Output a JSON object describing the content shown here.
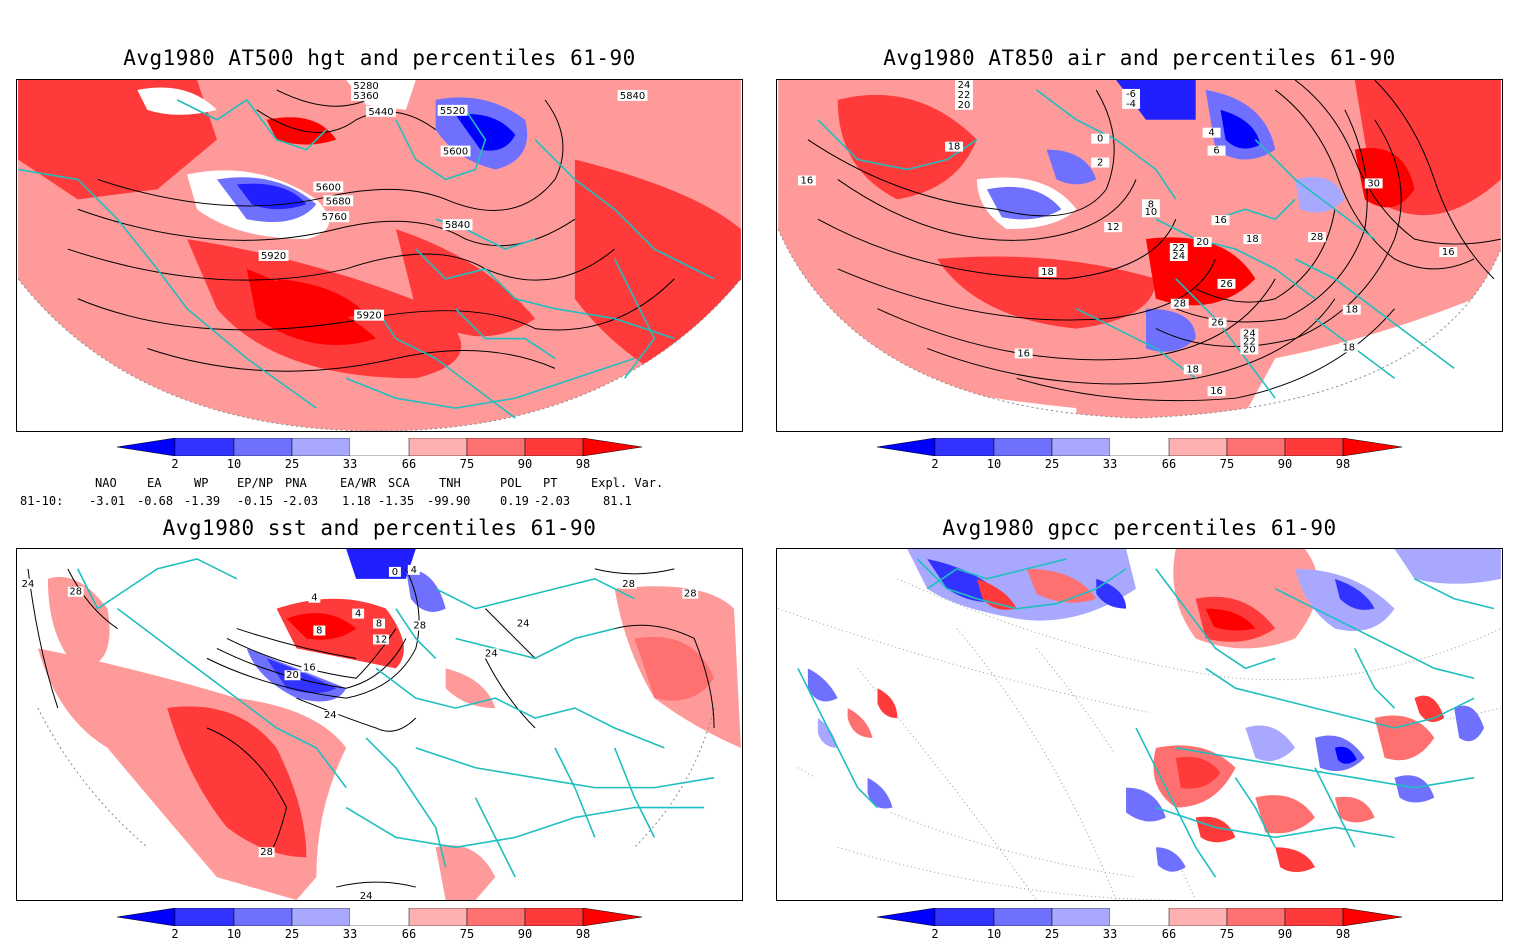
{
  "panels": [
    {
      "title": "Avg1980 AT500 hgt and percentiles 61-90",
      "contour_labels": [
        "5280",
        "5360",
        "5440",
        "5520",
        "5600",
        "5600",
        "5680",
        "5760",
        "5840",
        "5840",
        "5920",
        "5920"
      ]
    },
    {
      "title": "Avg1980 AT850 air and percentiles 61-90",
      "contour_labels": [
        "24",
        "22",
        "20",
        "18",
        "16",
        "-6",
        "-4",
        "0",
        "2",
        "4",
        "6",
        "8",
        "10",
        "12",
        "16",
        "18",
        "18",
        "20",
        "22",
        "24",
        "26",
        "28",
        "30",
        "28",
        "26",
        "24",
        "22",
        "20",
        "18",
        "16",
        "16",
        "18",
        "18",
        "16"
      ]
    },
    {
      "title": "Avg1980 sst and percentiles 61-90",
      "contour_labels": [
        "24",
        "28",
        "4",
        "8",
        "12",
        "16",
        "20",
        "24",
        "28",
        "24",
        "28",
        "28",
        "24",
        "24",
        "28",
        "0",
        "4",
        "4",
        "8"
      ]
    },
    {
      "title": "Avg1980 gpcc percentiles 61-90",
      "contour_labels": []
    }
  ],
  "colorbar": {
    "labels": [
      "2",
      "10",
      "25",
      "33",
      "66",
      "75",
      "90",
      "98"
    ],
    "colors": [
      "#0000ff",
      "#3333ff",
      "#7070ff",
      "#a8a8ff",
      "#ffffff",
      "#ffb0b0",
      "#ff7070",
      "#ff3a3a",
      "#ff0000"
    ]
  },
  "indices": {
    "headers": [
      "NAO",
      "EA",
      "WP",
      "EP/NP",
      "PNA",
      "EA/WR",
      "SCA",
      "TNH",
      "POL",
      "PT",
      "Expl. Var."
    ],
    "row_label": "81-10:",
    "values": [
      "-3.01",
      "-0.68",
      "-1.39",
      "-0.15",
      "-2.03",
      "1.18",
      "-1.35",
      "-99.90",
      "0.19",
      "-2.03",
      "81.1"
    ]
  },
  "colors": {
    "coast": "#1fbfbf",
    "contour": "#000000",
    "strong_red": "#ff2020",
    "light_red": "#ff9a9a",
    "blue": "#2020ff",
    "light_blue": "#a0a0ff"
  }
}
